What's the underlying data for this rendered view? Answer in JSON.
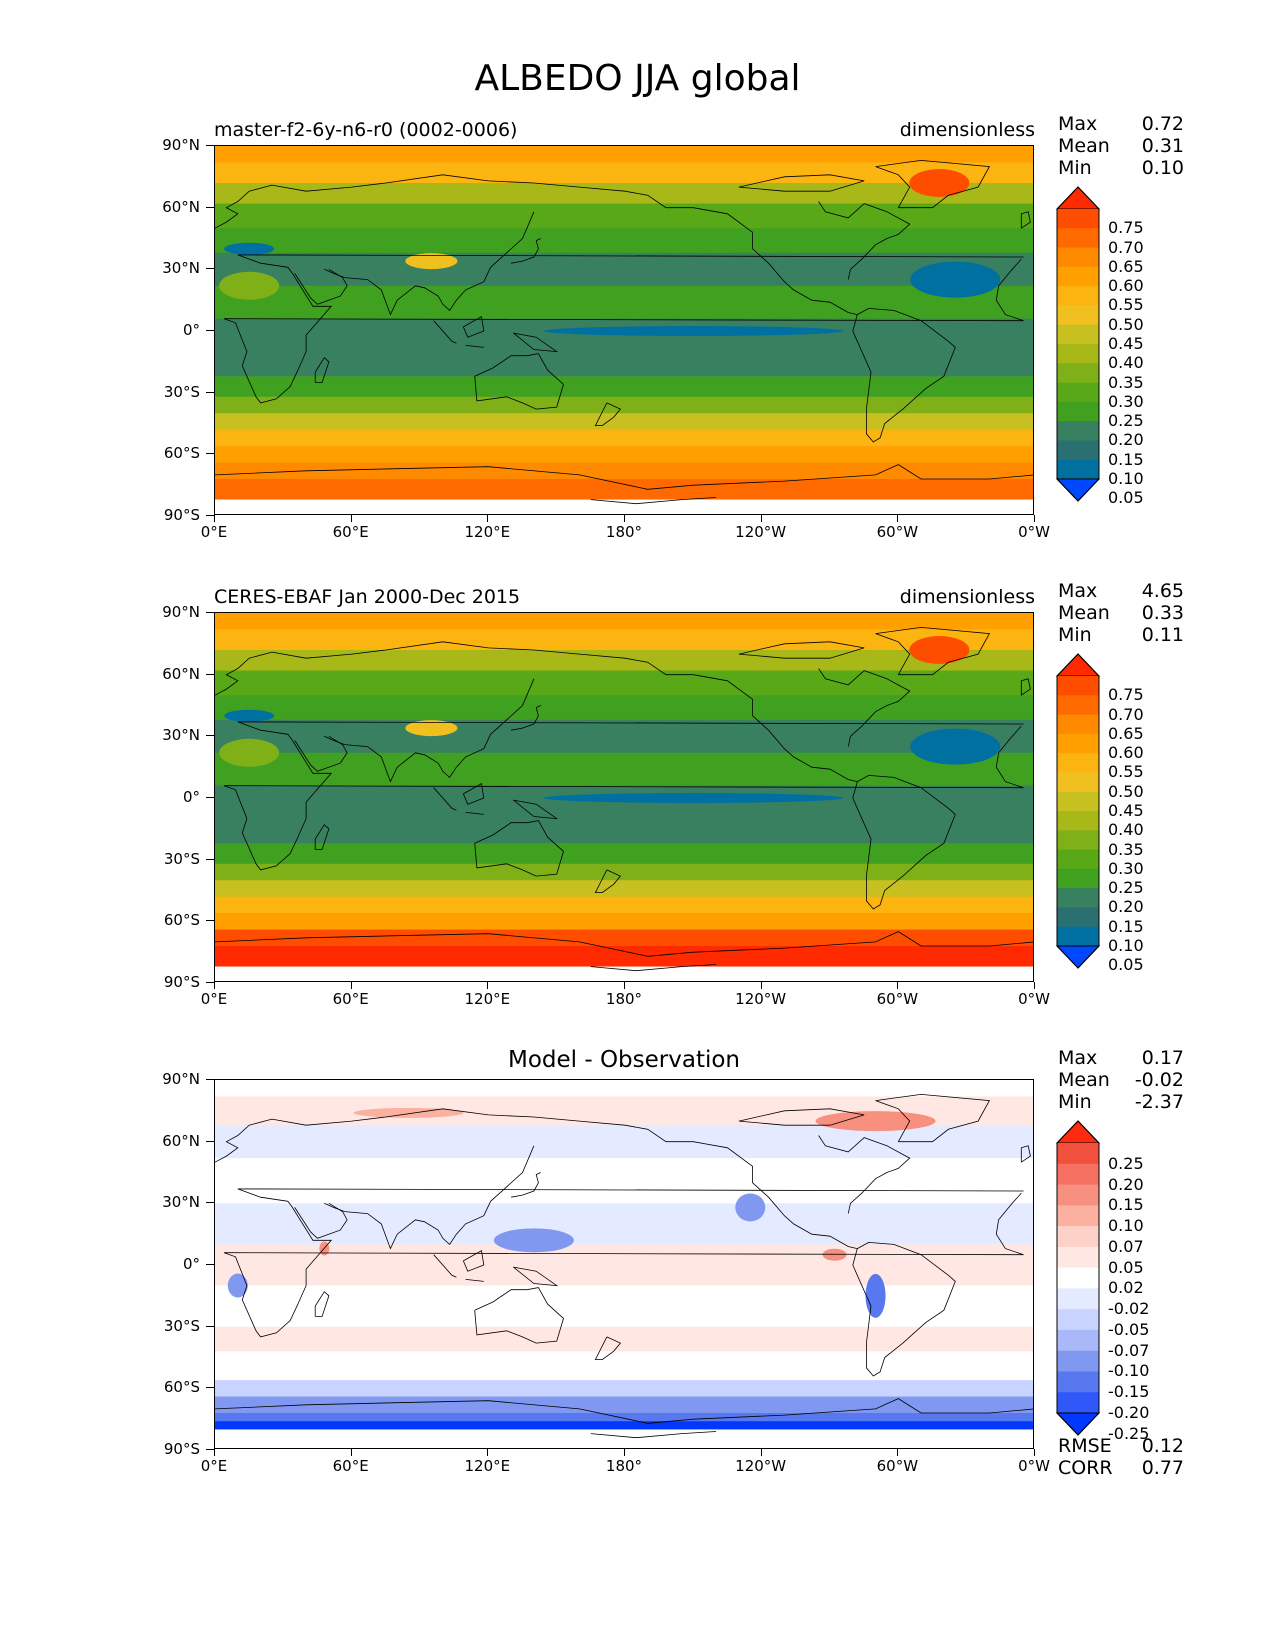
{
  "title": "ALBEDO JJA global",
  "axes": {
    "y_ticks": [
      "90°N",
      "60°N",
      "30°N",
      "0°",
      "30°S",
      "60°S",
      "90°S"
    ],
    "x_ticks": [
      "0°E",
      "60°E",
      "120°E",
      "180°",
      "120°W",
      "60°W",
      "0°W"
    ]
  },
  "panels": [
    {
      "left_title": "master-f2-6y-n6-r0 (0002-0006)",
      "right_title": "dimensionless",
      "center_title": "",
      "stats": [
        {
          "label": "Max",
          "value": "0.72"
        },
        {
          "label": "Mean",
          "value": "0.31"
        },
        {
          "label": "Min",
          "value": "0.10"
        }
      ],
      "colorbar": {
        "labels": [
          "0.75",
          "0.70",
          "0.65",
          "0.60",
          "0.55",
          "0.50",
          "0.45",
          "0.40",
          "0.35",
          "0.30",
          "0.25",
          "0.20",
          "0.15",
          "0.10",
          "0.05"
        ],
        "colors": [
          "#ff2a00",
          "#ff4d00",
          "#ff6a00",
          "#ff8a00",
          "#ffa000",
          "#fbb410",
          "#f0c020",
          "#c8c020",
          "#a8b818",
          "#80b018",
          "#58a818",
          "#40a020",
          "#388060",
          "#2a7070",
          "#0070a0",
          "#0048ff"
        ]
      },
      "map_style": "model"
    },
    {
      "left_title": "CERES-EBAF Jan 2000-Dec 2015",
      "right_title": "dimensionless",
      "center_title": "",
      "stats": [
        {
          "label": "Max",
          "value": "4.65"
        },
        {
          "label": "Mean",
          "value": "0.33"
        },
        {
          "label": "Min",
          "value": "0.11"
        }
      ],
      "colorbar": {
        "labels": [
          "0.75",
          "0.70",
          "0.65",
          "0.60",
          "0.55",
          "0.50",
          "0.45",
          "0.40",
          "0.35",
          "0.30",
          "0.25",
          "0.20",
          "0.15",
          "0.10",
          "0.05"
        ],
        "colors": [
          "#ff2a00",
          "#ff4d00",
          "#ff6a00",
          "#ff8a00",
          "#ffa000",
          "#fbb410",
          "#f0c020",
          "#c8c020",
          "#a8b818",
          "#80b018",
          "#58a818",
          "#40a020",
          "#388060",
          "#2a7070",
          "#0070a0",
          "#0048ff"
        ]
      },
      "map_style": "obs"
    },
    {
      "left_title": "",
      "right_title": "",
      "center_title": "Model - Observation",
      "stats": [
        {
          "label": "Max",
          "value": "0.17"
        },
        {
          "label": "Mean",
          "value": "-0.02"
        },
        {
          "label": "Min",
          "value": "-2.37"
        }
      ],
      "colorbar": {
        "labels": [
          "0.25",
          "0.20",
          "0.15",
          "0.10",
          "0.07",
          "0.05",
          "0.02",
          "-0.02",
          "-0.05",
          "-0.07",
          "-0.10",
          "-0.15",
          "-0.20",
          "-0.25"
        ],
        "colors": [
          "#ff2a10",
          "#f0503c",
          "#f57060",
          "#f89080",
          "#fbb0a0",
          "#fdd0c8",
          "#ffe8e4",
          "#ffffff",
          "#e4eaff",
          "#c8d4ff",
          "#a8b8f8",
          "#8098f0",
          "#5878f0",
          "#3058f8",
          "#0038ff"
        ]
      },
      "rmse": [
        {
          "label": "RMSE",
          "value": "0.12"
        },
        {
          "label": "CORR",
          "value": "0.77"
        }
      ],
      "map_style": "diff"
    }
  ]
}
